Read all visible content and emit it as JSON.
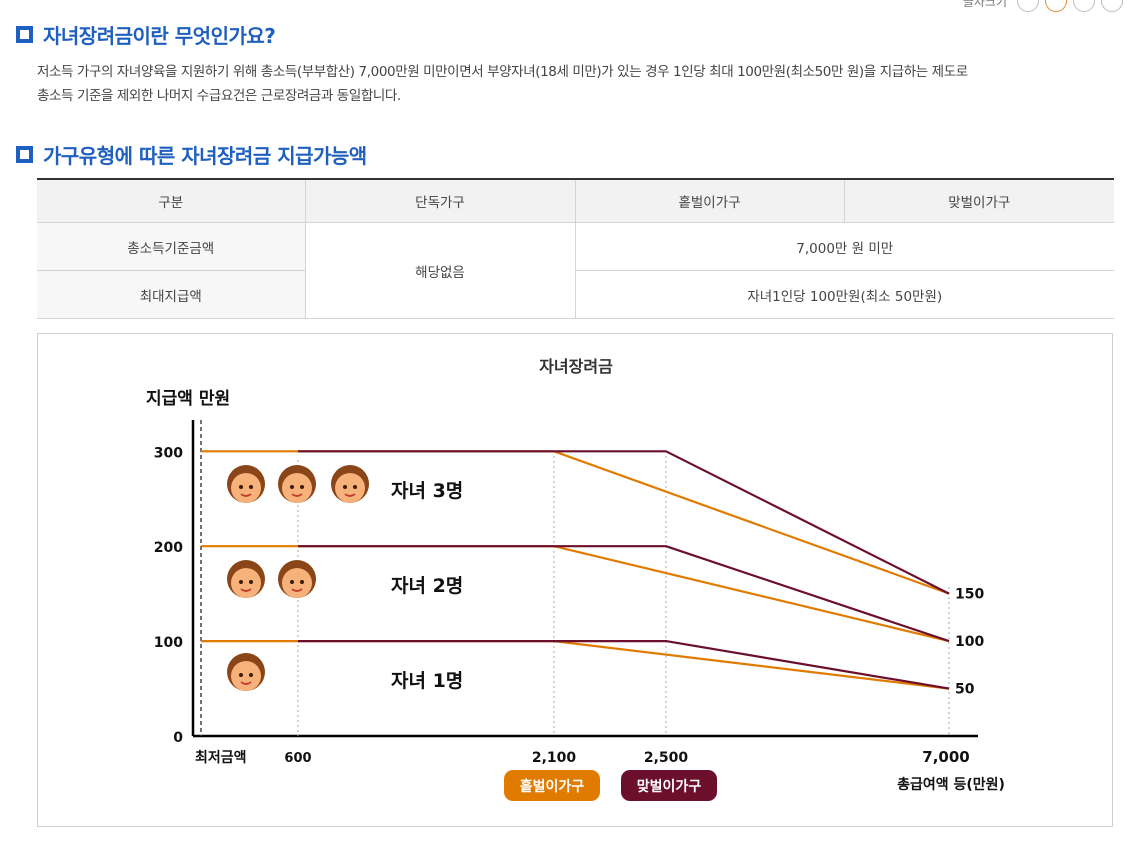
{
  "toolbar": {
    "label": "글자크기"
  },
  "section1": {
    "title": "자녀장려금이란 무엇인가요?",
    "desc": [
      "저소득 가구의 자녀양육을 지원하기 위해 총소득(부부합산) 7,000만원 미만이면서 부양자녀(18세 미만)가 있는 경우 1인당 최대 100만원(최소50만 원)을 지급하는 제도로",
      "총소득 기준을 제외한 나머지 수급요건은 근로장려금과 동일합니다."
    ]
  },
  "section2": {
    "title": "가구유형에 따른 자녀장려금 지급가능액"
  },
  "table": {
    "headers": [
      "구분",
      "단독가구",
      "홑벌이가구",
      "맞벌이가구"
    ],
    "rows": [
      {
        "label": "총소득기준금액",
        "value": "7,000만 원 미만"
      },
      {
        "label": "최대지급액",
        "value": "자녀1인당 100만원(최소 50만원)"
      }
    ],
    "single_household": "해당없음"
  },
  "chart_data": {
    "type": "line",
    "title": "자녀장려금",
    "ylabel": "지급액 만원",
    "xlabel": "총급여액 등(만원)",
    "x_tick_labels": [
      "최저금액",
      "600",
      "2,100",
      "2,500",
      "7,000"
    ],
    "y_tick_labels": [
      "0",
      "100",
      "200",
      "300"
    ],
    "right_labels": [
      "150",
      "100",
      "50"
    ],
    "ylim": [
      0,
      330
    ],
    "group_labels": [
      "자녀 3명",
      "자녀 2명",
      "자녀 1명"
    ],
    "legend": [
      {
        "name": "홑벌이가구",
        "color": "#e07b00"
      },
      {
        "name": "맞벌이가구",
        "color": "#6b0f2c"
      }
    ],
    "series": [
      {
        "name": "홑벌이가구",
        "group": "자녀 3명",
        "x": [
          "최저금액",
          "2,100",
          "7,000"
        ],
        "values": [
          300,
          300,
          150
        ]
      },
      {
        "name": "맞벌이가구",
        "group": "자녀 3명",
        "x": [
          "600",
          "2,500",
          "7,000"
        ],
        "values": [
          300,
          300,
          150
        ]
      },
      {
        "name": "홑벌이가구",
        "group": "자녀 2명",
        "x": [
          "최저금액",
          "2,100",
          "7,000"
        ],
        "values": [
          200,
          200,
          100
        ]
      },
      {
        "name": "맞벌이가구",
        "group": "자녀 2명",
        "x": [
          "600",
          "2,500",
          "7,000"
        ],
        "values": [
          200,
          200,
          100
        ]
      },
      {
        "name": "홑벌이가구",
        "group": "자녀 1명",
        "x": [
          "최저금액",
          "2,100",
          "7,000"
        ],
        "values": [
          100,
          100,
          50
        ]
      },
      {
        "name": "맞벌이가구",
        "group": "자녀 1명",
        "x": [
          "600",
          "2,500",
          "7,000"
        ],
        "values": [
          100,
          100,
          50
        ]
      }
    ],
    "children_icons": [
      3,
      2,
      1
    ]
  }
}
